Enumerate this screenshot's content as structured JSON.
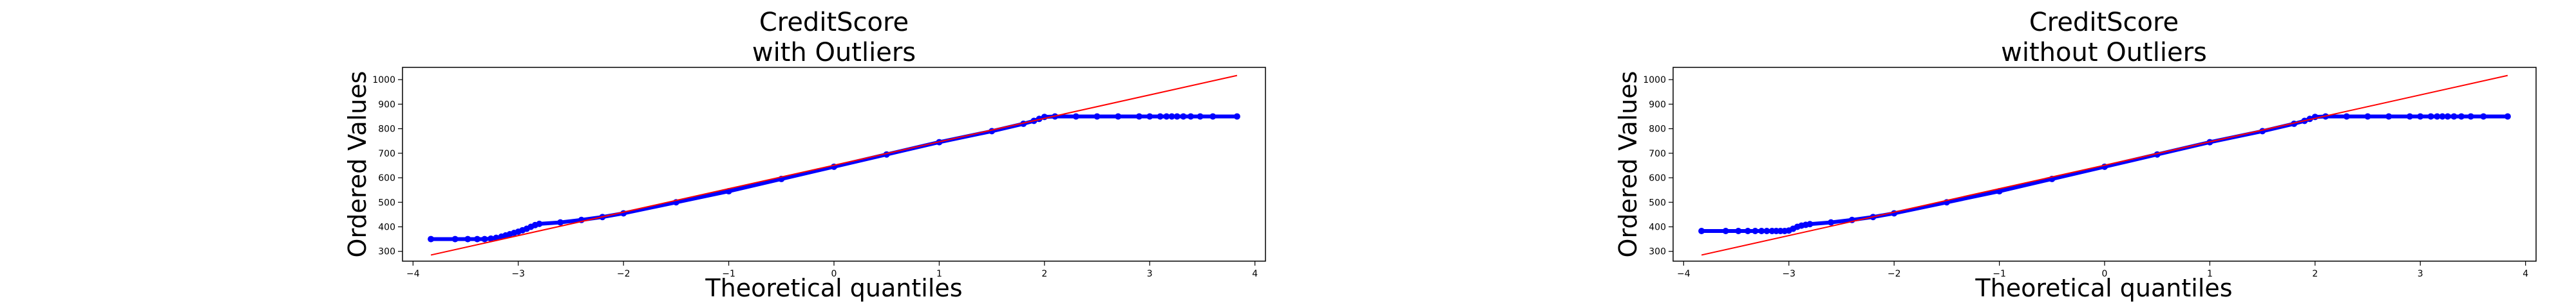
{
  "chart_data": [
    {
      "type": "scatter",
      "title_lines": [
        "CreditScore",
        "with Outliers"
      ],
      "xlabel": "Theoretical quantiles",
      "ylabel": "Ordered Values",
      "xlim": [
        -4.1,
        4.1
      ],
      "ylim": [
        260,
        1050
      ],
      "xticks": [
        -4,
        -3,
        -2,
        -1,
        0,
        1,
        2,
        3,
        4
      ],
      "yticks": [
        300,
        400,
        500,
        600,
        700,
        800,
        900,
        1000
      ],
      "grid": false,
      "colors": {
        "points": "#0000ff",
        "fit_line": "#ff0000"
      },
      "fit_line": {
        "x": [
          -3.83,
          3.83
        ],
        "y": [
          285,
          1017
        ]
      },
      "series": [
        {
          "x": [
            -3.83,
            -3.6,
            -3.48,
            -3.39,
            -3.32,
            -3.26,
            -3.21,
            -3.16,
            -3.12,
            -3.08,
            -3.04,
            -3.0,
            -2.96,
            -2.92,
            -2.88,
            -2.84,
            -2.8,
            -2.6,
            -2.4,
            -2.2,
            -2.0,
            -1.5,
            -1.0,
            -0.5,
            0.0,
            0.5,
            1.0,
            1.5,
            1.8,
            1.9,
            1.95,
            2.0,
            2.1,
            2.3,
            2.5,
            2.7,
            2.9,
            3.0,
            3.1,
            3.16,
            3.21,
            3.26,
            3.32,
            3.39,
            3.48,
            3.6,
            3.83
          ],
          "y": [
            350,
            350,
            350,
            350,
            350,
            352,
            355,
            360,
            365,
            370,
            375,
            380,
            386,
            392,
            400,
            407,
            412,
            418,
            428,
            440,
            455,
            500,
            545,
            595,
            645,
            695,
            745,
            790,
            820,
            832,
            840,
            848,
            850,
            850,
            850,
            850,
            850,
            850,
            850,
            850,
            850,
            850,
            850,
            850,
            850,
            850,
            850
          ]
        }
      ]
    },
    {
      "type": "scatter",
      "title_lines": [
        "CreditScore",
        "without Outliers"
      ],
      "xlabel": "Theoretical quantiles",
      "ylabel": "Ordered Values",
      "xlim": [
        -4.1,
        4.1
      ],
      "ylim": [
        260,
        1050
      ],
      "xticks": [
        -4,
        -3,
        -2,
        -1,
        0,
        1,
        2,
        3,
        4
      ],
      "yticks": [
        300,
        400,
        500,
        600,
        700,
        800,
        900,
        1000
      ],
      "grid": false,
      "colors": {
        "points": "#0000ff",
        "fit_line": "#ff0000"
      },
      "fit_line": {
        "x": [
          -3.83,
          3.83
        ],
        "y": [
          285,
          1017
        ]
      },
      "series": [
        {
          "x": [
            -3.83,
            -3.6,
            -3.48,
            -3.39,
            -3.32,
            -3.26,
            -3.21,
            -3.16,
            -3.12,
            -3.08,
            -3.04,
            -3.0,
            -2.96,
            -2.92,
            -2.88,
            -2.84,
            -2.8,
            -2.6,
            -2.4,
            -2.2,
            -2.0,
            -1.5,
            -1.0,
            -0.5,
            0.0,
            0.5,
            1.0,
            1.5,
            1.8,
            1.9,
            1.95,
            2.0,
            2.1,
            2.3,
            2.5,
            2.7,
            2.9,
            3.0,
            3.1,
            3.16,
            3.21,
            3.26,
            3.32,
            3.39,
            3.48,
            3.6,
            3.83
          ],
          "y": [
            383,
            383,
            383,
            383,
            383,
            383,
            383,
            383,
            383,
            383,
            383,
            385,
            392,
            400,
            405,
            408,
            411,
            418,
            428,
            440,
            455,
            500,
            545,
            595,
            645,
            695,
            745,
            790,
            820,
            832,
            840,
            848,
            850,
            850,
            850,
            850,
            850,
            850,
            850,
            850,
            850,
            850,
            850,
            850,
            850,
            850,
            850
          ]
        }
      ]
    }
  ]
}
